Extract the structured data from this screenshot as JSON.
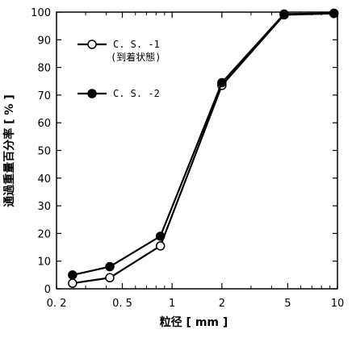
{
  "chart_data": {
    "type": "line",
    "xscale": "log",
    "xlim": [
      0.2,
      10
    ],
    "ylim": [
      0,
      100
    ],
    "xlabel": "粒径 [ mm ]",
    "ylabel": "通過重量百分率 [ % ]",
    "xticks": [
      0.2,
      0.5,
      1,
      2,
      5,
      10
    ],
    "xtick_labels": [
      "0. 2",
      "0. 5",
      "1",
      "2",
      "5",
      "10"
    ],
    "yticks": [
      0,
      10,
      20,
      30,
      40,
      50,
      60,
      70,
      80,
      90,
      100
    ],
    "ytick_labels": [
      "0",
      "10",
      "20",
      "30",
      "40",
      "50",
      "60",
      "70",
      "80",
      "90",
      "100"
    ],
    "grid": false,
    "legend_position": "upper-left",
    "series": [
      {
        "name": "C. S. -1 (到着状態)",
        "name_line1": "C. S. -1",
        "name_line2": "(到着状態)",
        "marker": "open-circle",
        "x": [
          0.25,
          0.42,
          0.85,
          2.0,
          4.76,
          9.52
        ],
        "y": [
          2,
          4,
          15.5,
          73.5,
          99,
          99.5
        ]
      },
      {
        "name": "C. S. -2",
        "marker": "filled-circle",
        "x": [
          0.25,
          0.42,
          0.85,
          2.0,
          4.76,
          9.52
        ],
        "y": [
          5,
          8,
          19,
          74.5,
          99.3,
          99.6
        ]
      }
    ]
  }
}
